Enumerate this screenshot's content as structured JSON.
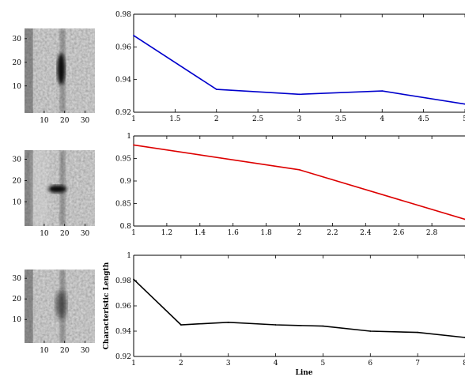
{
  "chart_data": [
    {
      "type": "heatmap",
      "image_description_hint": "grayscale texture patch",
      "xticks": [
        "10",
        "20",
        "30"
      ],
      "yticks": [
        "30",
        "20",
        "10"
      ],
      "dark_feature": "vertical-streak"
    },
    {
      "type": "line",
      "color": "#0000cc",
      "x": [
        1,
        2,
        3,
        4,
        5
      ],
      "y": [
        0.967,
        0.934,
        0.931,
        0.933,
        0.925
      ],
      "xlim": [
        1,
        5
      ],
      "ylim": [
        0.92,
        0.98
      ],
      "xticks": [
        "1",
        "1.5",
        "2",
        "2.5",
        "3",
        "3.5",
        "4",
        "4.5",
        "5"
      ],
      "yticks": [
        "0.98",
        "0.96",
        "0.94",
        "0.92"
      ],
      "ylabel": "",
      "xlabel": ""
    },
    {
      "type": "heatmap",
      "xticks": [
        "10",
        "20",
        "30"
      ],
      "yticks": [
        "30",
        "20",
        "10"
      ],
      "dark_feature": "horizontal-blob"
    },
    {
      "type": "line",
      "color": "#dd0000",
      "x": [
        1,
        2,
        3
      ],
      "y": [
        0.98,
        0.925,
        0.815
      ],
      "xlim": [
        1,
        3
      ],
      "ylim": [
        0.8,
        1
      ],
      "xticks": [
        "1",
        "1.2",
        "1.4",
        "1.6",
        "1.8",
        "2",
        "2.2",
        "2.4",
        "2.6",
        "2.8"
      ],
      "yticks": [
        "1",
        "0.95",
        "0.9",
        "0.85",
        "0.8"
      ],
      "ylabel": "",
      "xlabel": ""
    },
    {
      "type": "heatmap",
      "xticks": [
        "10",
        "20",
        "30"
      ],
      "yticks": [
        "30",
        "20",
        "10"
      ],
      "dark_feature": "faint-streak"
    },
    {
      "type": "line",
      "color": "#000000",
      "x": [
        1,
        2,
        3,
        4,
        5,
        6,
        7,
        8
      ],
      "y": [
        0.981,
        0.945,
        0.947,
        0.945,
        0.944,
        0.94,
        0.939,
        0.935
      ],
      "xlim": [
        1,
        8
      ],
      "ylim": [
        0.92,
        1
      ],
      "xticks": [
        "1",
        "2",
        "3",
        "4",
        "5",
        "6",
        "7",
        "8"
      ],
      "yticks": [
        "1",
        "0.98",
        "0.96",
        "0.94",
        "0.92"
      ],
      "ylabel": "Characteristic Length",
      "xlabel": "Line"
    }
  ]
}
